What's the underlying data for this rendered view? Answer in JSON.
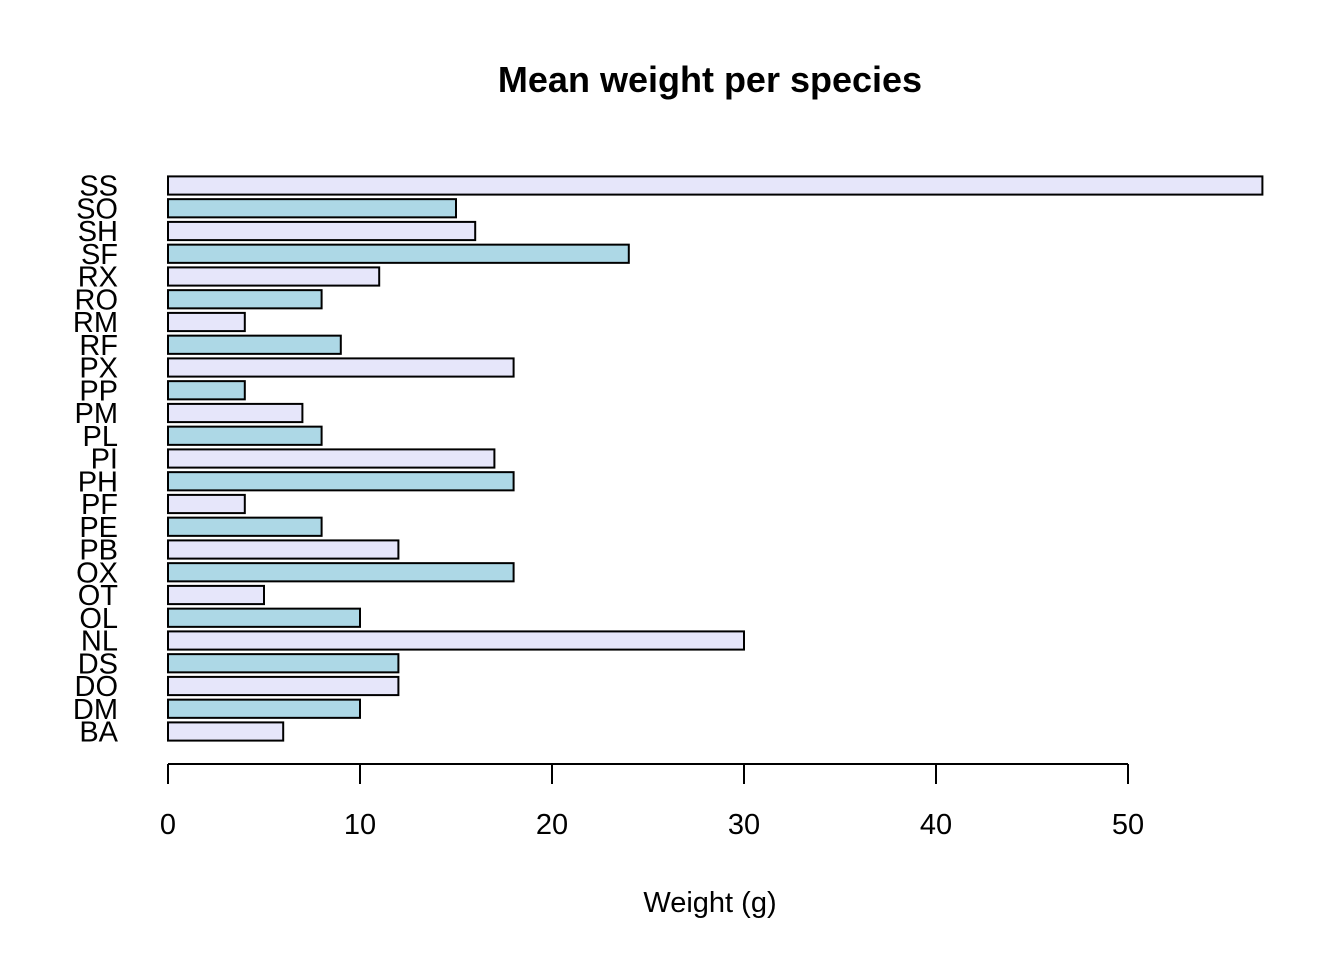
{
  "chart_data": {
    "type": "bar",
    "orientation": "horizontal",
    "title": "Mean weight per species",
    "xlabel": "Weight (g)",
    "ylabel": "",
    "xlim": [
      0,
      57
    ],
    "x_ticks": [
      0,
      10,
      20,
      30,
      40,
      50
    ],
    "categories": [
      "BA",
      "DM",
      "DO",
      "DS",
      "NL",
      "OL",
      "OT",
      "OX",
      "PB",
      "PE",
      "PF",
      "PH",
      "PI",
      "PL",
      "PM",
      "PP",
      "PX",
      "RF",
      "RM",
      "RO",
      "RX",
      "SF",
      "SH",
      "SO",
      "SS"
    ],
    "values": [
      6,
      10,
      12,
      12,
      30,
      10,
      5,
      18,
      12,
      8,
      4,
      18,
      17,
      8,
      7,
      4,
      18,
      9,
      4,
      8,
      11,
      24,
      16,
      15,
      57
    ],
    "colors": [
      "#e6e6fa",
      "#add8e6"
    ],
    "grid": false,
    "legend": "none"
  }
}
